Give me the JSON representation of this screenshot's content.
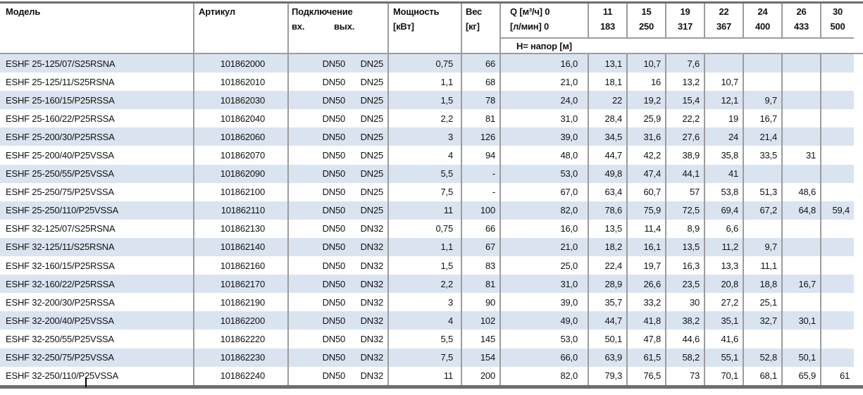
{
  "colors": {
    "row_stripe": "#dae4f0",
    "grid_line": "#9c9c9c",
    "border_dark": "#6e6e6e"
  },
  "table": {
    "columns": {
      "model": "Модель",
      "article": "Артикул",
      "connection": "Подключение",
      "connection_in": "вх.",
      "connection_out": "вых.",
      "power_l1": "Мощность",
      "power_l2": "[кВт]",
      "weight_l1": "Вес",
      "weight_l2": "[кг]",
      "flow_l1": "Q [м³/ч] 0",
      "flow_l2": "[л/мин] 0",
      "head_label": "Н= напор [м]"
    },
    "flow_points": [
      {
        "m3h": "11",
        "lmin": "183"
      },
      {
        "m3h": "15",
        "lmin": "250"
      },
      {
        "m3h": "19",
        "lmin": "317"
      },
      {
        "m3h": "22",
        "lmin": "367"
      },
      {
        "m3h": "24",
        "lmin": "400"
      },
      {
        "m3h": "26",
        "lmin": "433"
      },
      {
        "m3h": "30",
        "lmin": "500"
      }
    ],
    "rows": [
      {
        "model": "ESHF 25-125/07/S25RSNA",
        "article": "101862000",
        "inlet": "DN50",
        "outlet": "DN25",
        "power": "0,75",
        "weight": "66",
        "head": [
          "16,0",
          "13,1",
          "10,7",
          "7,6"
        ]
      },
      {
        "model": "ESHF 25-125/11/S25RSNA",
        "article": "101862010",
        "inlet": "DN50",
        "outlet": "DN25",
        "power": "1,1",
        "weight": "68",
        "head": [
          "21,0",
          "18,1",
          "16",
          "13,2",
          "10,7"
        ]
      },
      {
        "model": "ESHF 25-160/15/P25RSSA",
        "article": "101862030",
        "inlet": "DN50",
        "outlet": "DN25",
        "power": "1,5",
        "weight": "78",
        "head": [
          "24,0",
          "22",
          "19,2",
          "15,4",
          "12,1",
          "9,7"
        ]
      },
      {
        "model": "ESHF 25-160/22/P25RSSA",
        "article": "101862040",
        "inlet": "DN50",
        "outlet": "DN25",
        "power": "2,2",
        "weight": "81",
        "head": [
          "31,0",
          "28,4",
          "25,9",
          "22,2",
          "19",
          "16,7"
        ]
      },
      {
        "model": "ESHF 25-200/30/P25RSSA",
        "article": "101862060",
        "inlet": "DN50",
        "outlet": "DN25",
        "power": "3",
        "weight": "126",
        "head": [
          "39,0",
          "34,5",
          "31,6",
          "27,6",
          "24",
          "21,4"
        ]
      },
      {
        "model": "ESHF 25-200/40/P25VSSA",
        "article": "101862070",
        "inlet": "DN50",
        "outlet": "DN25",
        "power": "4",
        "weight": "94",
        "head": [
          "48,0",
          "44,7",
          "42,2",
          "38,9",
          "35,8",
          "33,5",
          "31"
        ]
      },
      {
        "model": "ESHF 25-250/55/P25VSSA",
        "article": "101862090",
        "inlet": "DN50",
        "outlet": "DN25",
        "power": "5,5",
        "weight": "-",
        "head": [
          "53,0",
          "49,8",
          "47,4",
          "44,1",
          "41"
        ]
      },
      {
        "model": "ESHF 25-250/75/P25VSSA",
        "article": "101862100",
        "inlet": "DN50",
        "outlet": "DN25",
        "power": "7,5",
        "weight": "-",
        "head": [
          "67,0",
          "63,4",
          "60,7",
          "57",
          "53,8",
          "51,3",
          "48,6"
        ]
      },
      {
        "model": "ESHF 25-250/110/P25VSSA",
        "article": "101862110",
        "inlet": "DN50",
        "outlet": "DN25",
        "power": "11",
        "weight": "100",
        "head": [
          "82,0",
          "78,6",
          "75,9",
          "72,5",
          "69,4",
          "67,2",
          "64,8",
          "59,4"
        ]
      },
      {
        "model": "ESHF 32-125/07/S25RSNA",
        "article": "101862130",
        "inlet": "DN50",
        "outlet": "DN32",
        "power": "0,75",
        "weight": "66",
        "head": [
          "16,0",
          "13,5",
          "11,4",
          "8,9",
          "6,6"
        ]
      },
      {
        "model": "ESHF 32-125/11/S25RSNA",
        "article": "101862140",
        "inlet": "DN50",
        "outlet": "DN32",
        "power": "1,1",
        "weight": "67",
        "head": [
          "21,0",
          "18,2",
          "16,1",
          "13,5",
          "11,2",
          "9,7"
        ]
      },
      {
        "model": "ESHF 32-160/15/P25RSSA",
        "article": "101862160",
        "inlet": "DN50",
        "outlet": "DN32",
        "power": "1,5",
        "weight": "83",
        "head": [
          "25,0",
          "22,4",
          "19,7",
          "16,3",
          "13,3",
          "11,1"
        ]
      },
      {
        "model": "ESHF 32-160/22/P25RSSA",
        "article": "101862170",
        "inlet": "DN50",
        "outlet": "DN32",
        "power": "2,2",
        "weight": "81",
        "head": [
          "31,0",
          "28,9",
          "26,6",
          "23,5",
          "20,8",
          "18,8",
          "16,7"
        ]
      },
      {
        "model": "ESHF 32-200/30/P25RSSA",
        "article": "101862190",
        "inlet": "DN50",
        "outlet": "DN32",
        "power": "3",
        "weight": "90",
        "head": [
          "39,0",
          "35,7",
          "33,2",
          "30",
          "27,2",
          "25,1"
        ]
      },
      {
        "model": "ESHF 32-200/40/P25VSSA",
        "article": "101862200",
        "inlet": "DN50",
        "outlet": "DN32",
        "power": "4",
        "weight": "102",
        "head": [
          "49,0",
          "44,7",
          "41,8",
          "38,2",
          "35,1",
          "32,7",
          "30,1"
        ]
      },
      {
        "model": "ESHF 32-250/55/P25VSSA",
        "article": "101862220",
        "inlet": "DN50",
        "outlet": "DN32",
        "power": "5,5",
        "weight": "145",
        "head": [
          "53,0",
          "50,1",
          "47,8",
          "44,6",
          "41,6"
        ]
      },
      {
        "model": "ESHF 32-250/75/P25VSSA",
        "article": "101862230",
        "inlet": "DN50",
        "outlet": "DN32",
        "power": "7,5",
        "weight": "154",
        "head": [
          "66,0",
          "63,9",
          "61,5",
          "58,2",
          "55,1",
          "52,8",
          "50,1"
        ]
      },
      {
        "model": "ESHF 32-250/110/P25VSSA",
        "article": "101862240",
        "inlet": "DN50",
        "outlet": "DN32",
        "power": "11",
        "weight": "200",
        "head": [
          "82,0",
          "79,3",
          "76,5",
          "73",
          "70,1",
          "68,1",
          "65,9",
          "61"
        ]
      }
    ]
  }
}
